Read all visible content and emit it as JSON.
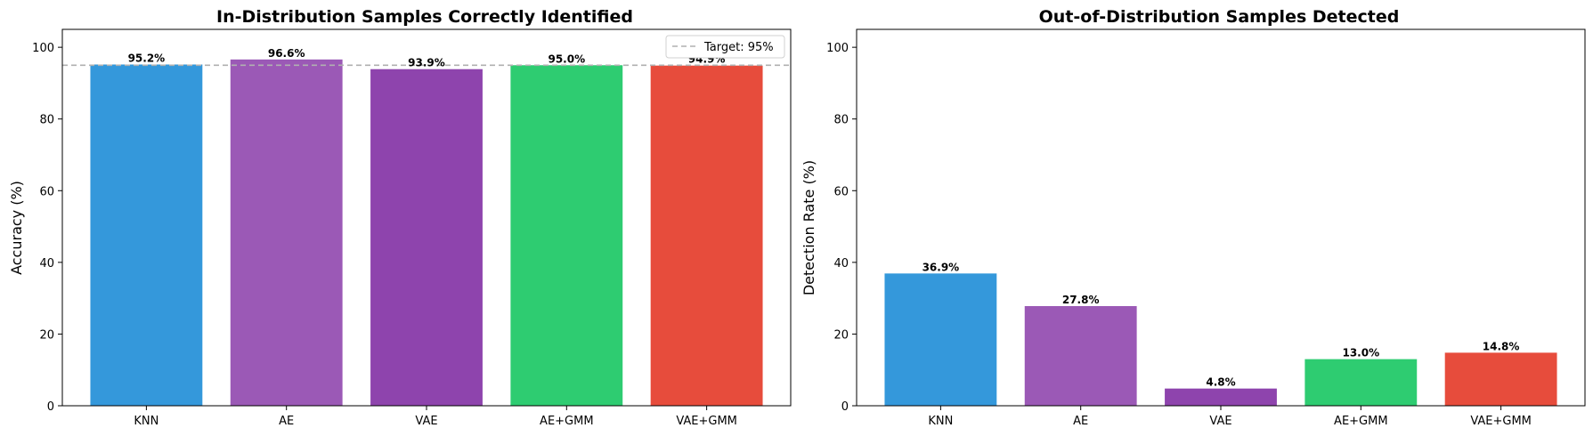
{
  "chart_data": [
    {
      "type": "bar",
      "title": "In-Distribution Samples Correctly Identified",
      "xlabel": "",
      "ylabel": "Accuracy (%)",
      "ylim": [
        0,
        105
      ],
      "yticks": [
        0,
        20,
        40,
        60,
        80,
        100
      ],
      "categories": [
        "KNN",
        "AE",
        "VAE",
        "AE+GMM",
        "VAE+GMM"
      ],
      "values": [
        95.2,
        96.6,
        93.9,
        95.0,
        94.9
      ],
      "data_labels": [
        "95.2%",
        "96.6%",
        "93.9%",
        "95.0%",
        "94.9%"
      ],
      "colors": [
        "#3498db",
        "#9b59b6",
        "#8e44ad",
        "#2ecc71",
        "#e74c3c"
      ],
      "reference_line": {
        "value": 95,
        "label": "Target: 95%",
        "color": "#b0b0b0",
        "style": "dashed"
      },
      "legend": {
        "position": "top-right",
        "entries": [
          "Target: 95%"
        ]
      },
      "grid": false
    },
    {
      "type": "bar",
      "title": "Out-of-Distribution Samples Detected",
      "xlabel": "",
      "ylabel": "Detection Rate (%)",
      "ylim": [
        0,
        105
      ],
      "yticks": [
        0,
        20,
        40,
        60,
        80,
        100
      ],
      "categories": [
        "KNN",
        "AE",
        "VAE",
        "AE+GMM",
        "VAE+GMM"
      ],
      "values": [
        36.9,
        27.8,
        4.8,
        13.0,
        14.8
      ],
      "data_labels": [
        "36.9%",
        "27.8%",
        "4.8%",
        "13.0%",
        "14.8%"
      ],
      "colors": [
        "#3498db",
        "#9b59b6",
        "#8e44ad",
        "#2ecc71",
        "#e74c3c"
      ],
      "grid": false
    }
  ]
}
